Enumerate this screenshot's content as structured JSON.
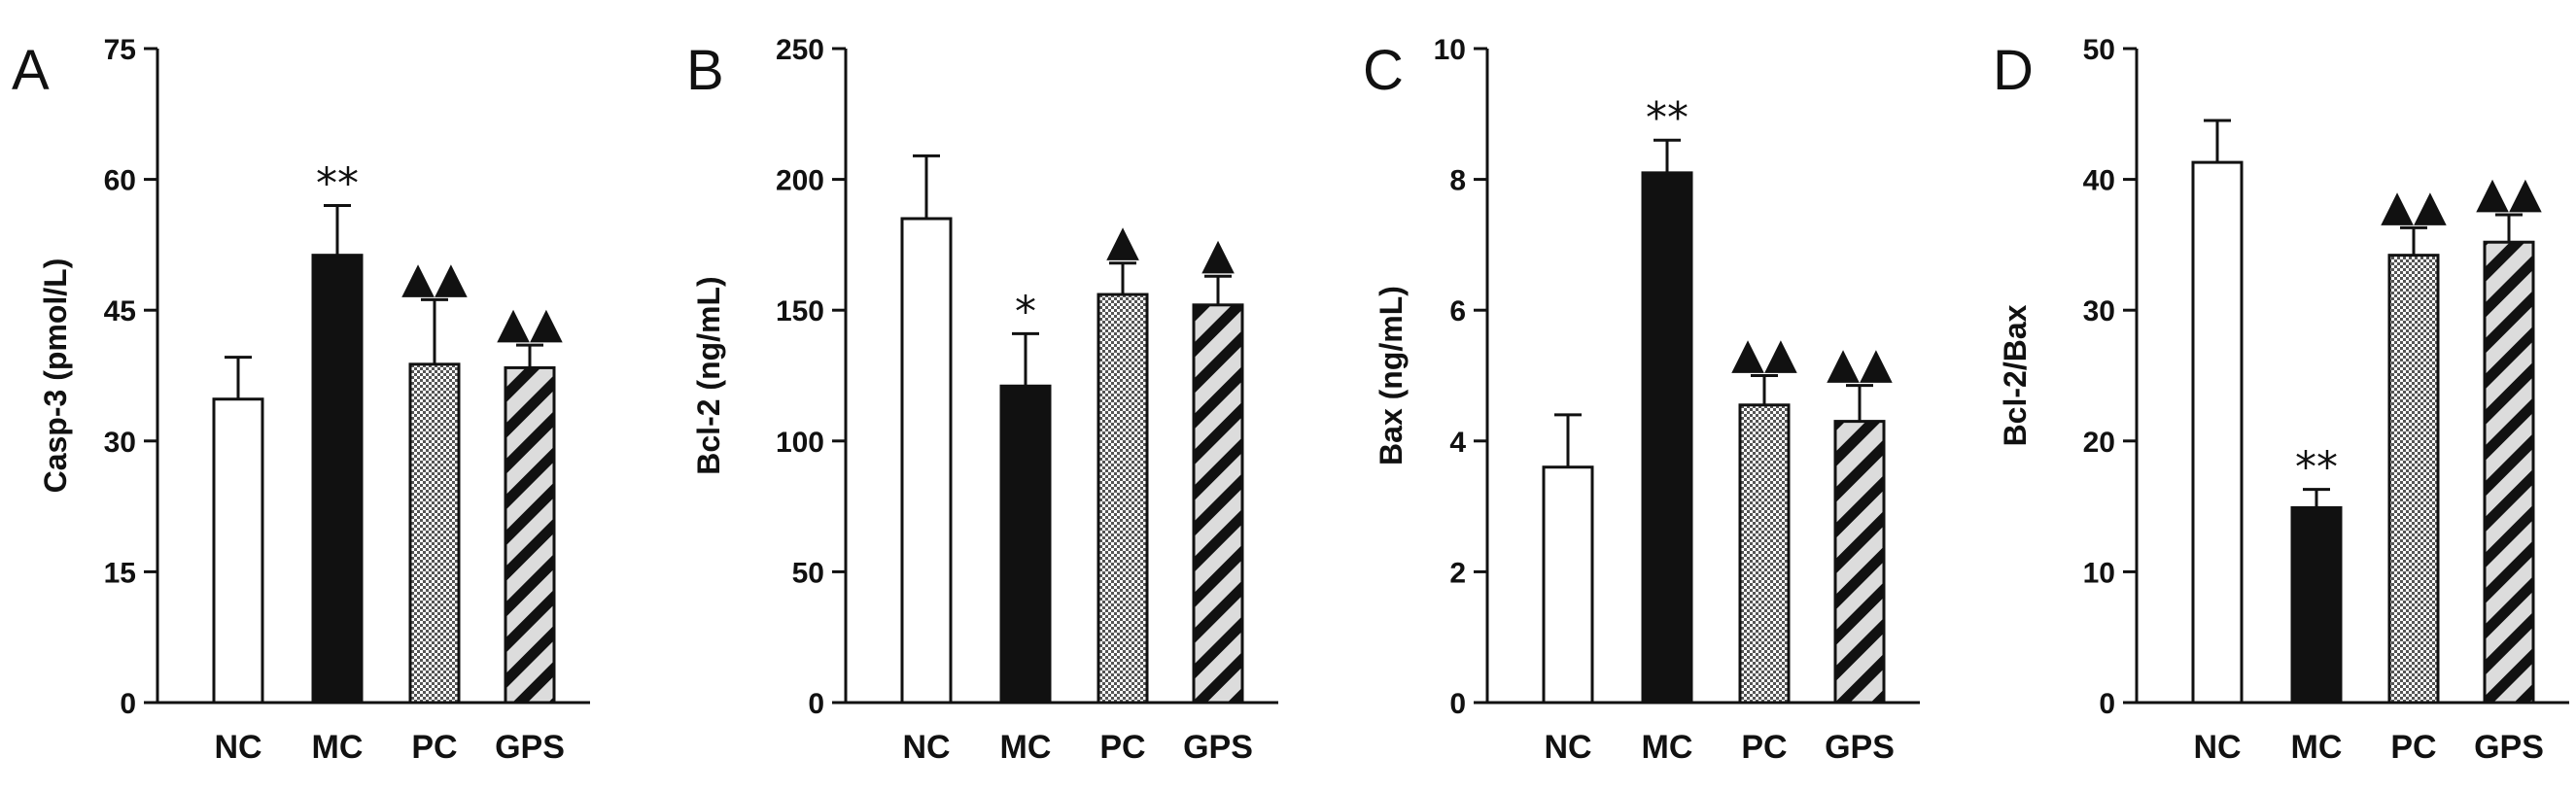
{
  "chart_data": [
    {
      "panel": "A",
      "type": "bar",
      "ylabel": "Casp-3 (pmol/L)",
      "ylim": [
        0,
        75
      ],
      "yticks": [
        0,
        15,
        30,
        45,
        60,
        75
      ],
      "categories": [
        "NC",
        "MC",
        "PC",
        "GPS"
      ],
      "values": [
        34.8,
        51.3,
        38.8,
        38.4
      ],
      "errors": [
        4.8,
        5.7,
        7.4,
        2.6
      ],
      "significance": [
        "",
        "**",
        "▲▲",
        "▲▲"
      ]
    },
    {
      "panel": "B",
      "type": "bar",
      "ylabel": "Bcl-2 (ng/mL)",
      "ylim": [
        0,
        250
      ],
      "yticks": [
        0,
        50,
        100,
        150,
        200,
        250
      ],
      "categories": [
        "NC",
        "MC",
        "PC",
        "GPS"
      ],
      "values": [
        185,
        121,
        156,
        152
      ],
      "errors": [
        24,
        20,
        12,
        11
      ],
      "significance": [
        "",
        "*",
        "▲",
        "▲"
      ]
    },
    {
      "panel": "C",
      "type": "bar",
      "ylabel": "Bax (ng/mL)",
      "ylim": [
        0,
        10
      ],
      "yticks": [
        0,
        2,
        4,
        6,
        8,
        10
      ],
      "categories": [
        "NC",
        "MC",
        "PC",
        "GPS"
      ],
      "values": [
        3.6,
        8.1,
        4.55,
        4.3
      ],
      "errors": [
        0.8,
        0.5,
        0.45,
        0.55
      ],
      "significance": [
        "",
        "**",
        "▲▲",
        "▲▲"
      ]
    },
    {
      "panel": "D",
      "type": "bar",
      "ylabel": "Bcl-2/Bax",
      "ylim": [
        0,
        50
      ],
      "yticks": [
        0,
        10,
        20,
        30,
        40,
        50
      ],
      "categories": [
        "NC",
        "MC",
        "PC",
        "GPS"
      ],
      "values": [
        41.3,
        14.9,
        34.2,
        35.2
      ],
      "errors": [
        3.2,
        1.4,
        2.1,
        2.1
      ],
      "significance": [
        "",
        "**",
        "▲▲",
        "▲▲"
      ]
    }
  ],
  "styles": {
    "bar_fills": [
      "white",
      "black",
      "checker",
      "stripes"
    ],
    "ink_color": "#111111"
  }
}
